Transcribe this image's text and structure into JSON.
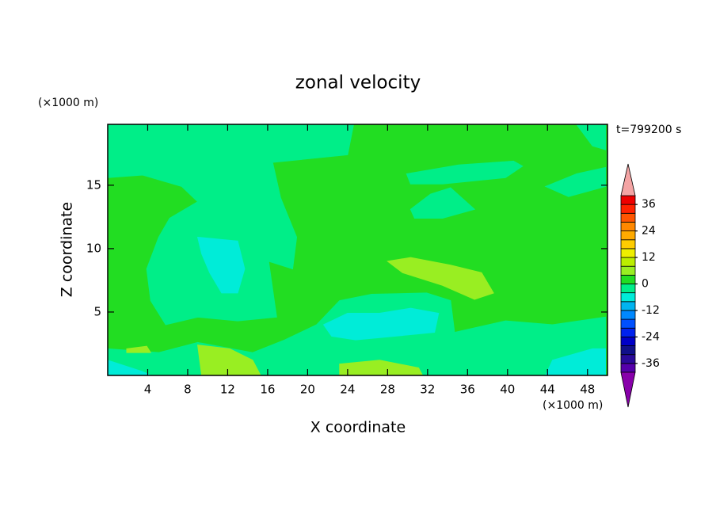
{
  "chart_data": {
    "type": "contour",
    "title": "zonal velocity",
    "x_label": "X coordinate",
    "y_label": "Z coordinate",
    "x_unit": "(×1000 m)",
    "y_unit": "(×1000 m)",
    "time_label": "t=799200 s",
    "xlim": [
      0,
      50
    ],
    "ylim": [
      0,
      19.8
    ],
    "xticks": [
      4,
      8,
      12,
      16,
      20,
      24,
      28,
      32,
      36,
      40,
      44,
      48
    ],
    "yticks": [
      5,
      10,
      15
    ],
    "levels": [
      -40,
      -36,
      -32,
      -28,
      -24,
      -20,
      -16,
      -12,
      -8,
      -4,
      0,
      4,
      8,
      12,
      16,
      20,
      24,
      28,
      32,
      36,
      40
    ],
    "colors": [
      "#5500aa",
      "#2a0a9a",
      "#10108a",
      "#0000c8",
      "#0022ee",
      "#0050ff",
      "#0088ff",
      "#00b4f0",
      "#00ecd8",
      "#00ee88",
      "#22dd22",
      "#99ee22",
      "#bbee00",
      "#eeee00",
      "#ffcc00",
      "#ffaa00",
      "#ff8800",
      "#ff5500",
      "#ff2200",
      "#ee0000"
    ],
    "over_color": "#f4a4a4",
    "under_color": "#8800aa",
    "colorbar_ticks": [
      -36,
      -24,
      -12,
      0,
      12,
      24,
      36
    ],
    "background_level": 0,
    "regions": [
      {
        "level": -4,
        "x": [
          0,
          24.6,
          24.0,
          16.5,
          17.3,
          18.9,
          18.5,
          16.1,
          16.9,
          13.0,
          9.0,
          5.8,
          4.3,
          3.9,
          5.1,
          6.2,
          9.0,
          7.4,
          3.5,
          0
        ],
        "z": [
          19.8,
          19.8,
          17.4,
          16.8,
          14.0,
          10.9,
          8.4,
          9.0,
          4.6,
          4.3,
          4.6,
          4.0,
          5.9,
          8.4,
          10.9,
          12.4,
          13.7,
          14.9,
          15.8,
          15.6
        ]
      },
      {
        "level": -4,
        "x": [
          0,
          5.1,
          9.0,
          14.5,
          17.7,
          20.9,
          23.2,
          26.4,
          31.9,
          34.3,
          34.7,
          39.8,
          44.5,
          49.8,
          49.8,
          0
        ],
        "z": [
          2.1,
          1.8,
          2.6,
          1.8,
          2.8,
          4.0,
          5.9,
          6.4,
          6.5,
          5.9,
          3.4,
          4.3,
          4.0,
          4.6,
          0,
          0
        ]
      },
      {
        "level": -4,
        "x": [
          29.9,
          35.1,
          40.6,
          41.5,
          39.8,
          33.5,
          30.3
        ],
        "z": [
          15.9,
          16.6,
          16.9,
          16.5,
          15.6,
          15.1,
          15.1
        ]
      },
      {
        "level": -4,
        "x": [
          30.3,
          32.3,
          34.3,
          36.7,
          33.5,
          30.7
        ],
        "z": [
          13.1,
          14.3,
          14.8,
          13.1,
          12.4,
          12.4
        ]
      },
      {
        "level": -4,
        "x": [
          46.9,
          49.8,
          49.8,
          48.5
        ],
        "z": [
          19.8,
          19.8,
          17.8,
          18.1
        ]
      },
      {
        "level": -4,
        "x": [
          43.8,
          46.9,
          49.8,
          49.8,
          46.1
        ],
        "z": [
          14.9,
          15.9,
          16.4,
          14.9,
          14.1
        ]
      },
      {
        "level": -8,
        "x": [
          9.0,
          13.0,
          13.7,
          13.0,
          11.4,
          10.2,
          9.4
        ],
        "z": [
          10.9,
          10.6,
          8.4,
          6.5,
          6.5,
          8.1,
          9.6
        ]
      },
      {
        "level": -8,
        "x": [
          21.6,
          24.0,
          27.2,
          30.3,
          33.1,
          32.7,
          28.8,
          24.8,
          22.4
        ],
        "z": [
          4.0,
          4.9,
          4.9,
          5.3,
          4.9,
          3.4,
          3.1,
          2.8,
          3.1
        ]
      },
      {
        "level": -8,
        "x": [
          0,
          3.5,
          4.3,
          0
        ],
        "z": [
          1.2,
          0.3,
          0,
          0
        ]
      },
      {
        "level": -8,
        "x": [
          44.5,
          48.5,
          49.8,
          49.8,
          43.8
        ],
        "z": [
          1.2,
          2.1,
          2.1,
          0,
          0
        ]
      },
      {
        "level": 4,
        "x": [
          28.0,
          30.3,
          34.3,
          37.4,
          38.6,
          36.7,
          33.5,
          29.5
        ],
        "z": [
          9.0,
          9.3,
          8.7,
          8.1,
          6.5,
          6.0,
          7.1,
          8.1
        ]
      },
      {
        "level": 4,
        "x": [
          9.0,
          12.2,
          14.5,
          15.3,
          9.4
        ],
        "z": [
          2.4,
          2.1,
          1.2,
          0,
          0
        ]
      },
      {
        "level": 4,
        "x": [
          23.2,
          27.2,
          31.1,
          31.5,
          23.2
        ],
        "z": [
          0.9,
          1.2,
          0.6,
          0,
          0
        ]
      },
      {
        "level": 4,
        "x": [
          1.9,
          3.9,
          4.3,
          1.9
        ],
        "z": [
          2.1,
          2.3,
          1.8,
          1.8
        ]
      }
    ]
  }
}
